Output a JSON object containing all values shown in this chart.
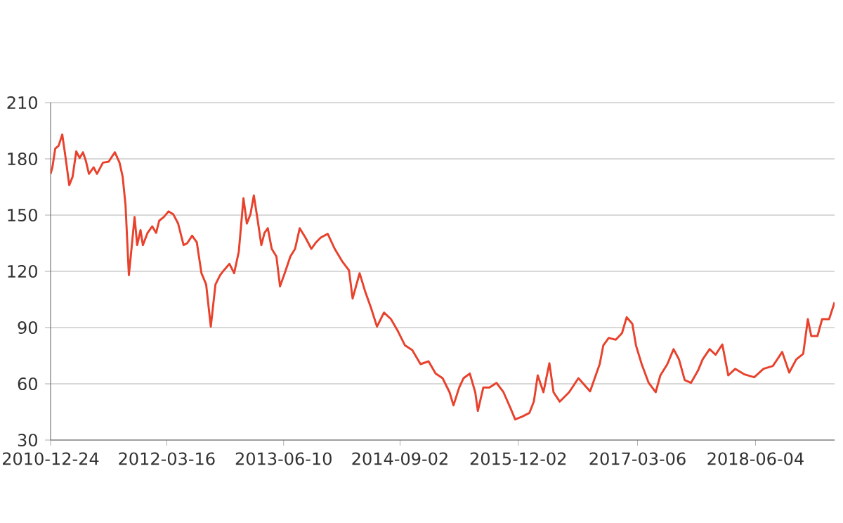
{
  "chart_data": {
    "type": "line",
    "color": "#e8412c",
    "grid": "y",
    "xlim": [
      "2010-12-24",
      "2019-04-05"
    ],
    "ylim": [
      30,
      210
    ],
    "xticks": [
      "2010-12-24",
      "2012-03-16",
      "2013-06-10",
      "2014-09-02",
      "2015-12-02",
      "2017-03-06",
      "2018-06-04"
    ],
    "yticks": [
      30,
      60,
      90,
      120,
      150,
      180,
      210
    ],
    "x": [
      "2010-12-24",
      "2010-12-31",
      "2011-01-11",
      "2011-01-24",
      "2011-02-07",
      "2011-02-20",
      "2011-03-06",
      "2011-03-19",
      "2011-04-02",
      "2011-04-15",
      "2011-04-28",
      "2011-05-09",
      "2011-05-21",
      "2011-06-08",
      "2011-06-21",
      "2011-07-14",
      "2011-08-05",
      "2011-08-29",
      "2011-09-16",
      "2011-09-28",
      "2011-10-09",
      "2011-10-22",
      "2011-10-31",
      "2011-11-13",
      "2011-11-23",
      "2011-12-06",
      "2011-12-15",
      "2012-01-02",
      "2012-01-20",
      "2012-02-04",
      "2012-02-16",
      "2012-03-05",
      "2012-03-23",
      "2012-04-10",
      "2012-04-29",
      "2012-05-20",
      "2012-06-03",
      "2012-06-22",
      "2012-07-10",
      "2012-07-28",
      "2012-08-15",
      "2012-09-02",
      "2012-09-20",
      "2012-10-08",
      "2012-10-22",
      "2012-11-13",
      "2012-12-01",
      "2012-12-19",
      "2013-01-06",
      "2013-01-19",
      "2013-02-02",
      "2013-02-15",
      "2013-03-01",
      "2013-03-16",
      "2013-03-28",
      "2013-04-10",
      "2013-04-25",
      "2013-05-13",
      "2013-05-27",
      "2013-06-14",
      "2013-07-06",
      "2013-07-24",
      "2013-08-11",
      "2013-09-02",
      "2013-09-25",
      "2013-10-13",
      "2013-10-31",
      "2013-11-27",
      "2013-12-24",
      "2014-01-21",
      "2014-02-17",
      "2014-03-03",
      "2014-03-30",
      "2014-04-21",
      "2014-05-13",
      "2014-06-05",
      "2014-07-02",
      "2014-07-29",
      "2014-08-25",
      "2014-09-21",
      "2014-10-19",
      "2014-11-20",
      "2014-12-21",
      "2015-01-17",
      "2015-02-13",
      "2015-03-12",
      "2015-03-27",
      "2015-04-18",
      "2015-05-05",
      "2015-05-29",
      "2015-06-19",
      "2015-06-29",
      "2015-07-20",
      "2015-08-13",
      "2015-09-09",
      "2015-10-06",
      "2015-11-02",
      "2015-11-20",
      "2015-12-17",
      "2016-01-14",
      "2016-01-31",
      "2016-02-15",
      "2016-03-08",
      "2016-03-31",
      "2016-04-16",
      "2016-05-10",
      "2016-06-15",
      "2016-07-21",
      "2016-09-04",
      "2016-10-11",
      "2016-10-25",
      "2016-11-15",
      "2016-12-12",
      "2017-01-05",
      "2017-01-23",
      "2017-02-14",
      "2017-02-28",
      "2017-03-22",
      "2017-04-18",
      "2017-05-15",
      "2017-06-02",
      "2017-06-29",
      "2017-07-23",
      "2017-08-13",
      "2017-09-04",
      "2017-09-28",
      "2017-10-25",
      "2017-11-12",
      "2017-12-09",
      "2018-01-01",
      "2018-01-27",
      "2018-02-19",
      "2018-03-18",
      "2018-04-23",
      "2018-05-30",
      "2018-07-05",
      "2018-08-10",
      "2018-09-15",
      "2018-10-12",
      "2018-11-08",
      "2018-12-05",
      "2018-12-23",
      "2019-01-05",
      "2019-01-29",
      "2019-02-16",
      "2019-03-15",
      "2019-04-05"
    ],
    "values": [
      172,
      175.5,
      185.5,
      187,
      193,
      180.5,
      166,
      170.5,
      184,
      180.5,
      183.5,
      179,
      172,
      175.5,
      172,
      178,
      178.5,
      183.5,
      178,
      170.5,
      155.5,
      118,
      130.5,
      149,
      134,
      142,
      134,
      140.5,
      144,
      140.5,
      147,
      149,
      152,
      150.5,
      145.5,
      134,
      135,
      139,
      135.5,
      119,
      113,
      90.5,
      113,
      118,
      120.5,
      124,
      119,
      130.5,
      159,
      145.5,
      150.5,
      160.5,
      148,
      134,
      140.5,
      143,
      132,
      128,
      112,
      119,
      128,
      132,
      143,
      138,
      132,
      135.5,
      138,
      140,
      132,
      125.5,
      120.5,
      105.5,
      119,
      109,
      100.5,
      90.5,
      98,
      94.5,
      88,
      80.5,
      78,
      70.5,
      72,
      65.5,
      63,
      55.5,
      48.5,
      58,
      63,
      65.5,
      55.5,
      45.5,
      58,
      58,
      60.5,
      55.5,
      47,
      41,
      42.5,
      44.5,
      50.5,
      64.5,
      55.5,
      71,
      55.5,
      50.5,
      55.5,
      63,
      56,
      70.5,
      80.5,
      84.5,
      83.5,
      87,
      95.5,
      92,
      80.5,
      70.5,
      60.5,
      55.5,
      64.5,
      70.5,
      78.5,
      73,
      62,
      60.5,
      67,
      73,
      78.5,
      75.5,
      81,
      64.5,
      68,
      65,
      63.5,
      68,
      69.5,
      77,
      66,
      73,
      76,
      94.5,
      85.5,
      85.5,
      94.5,
      94.5,
      103.5
    ]
  }
}
